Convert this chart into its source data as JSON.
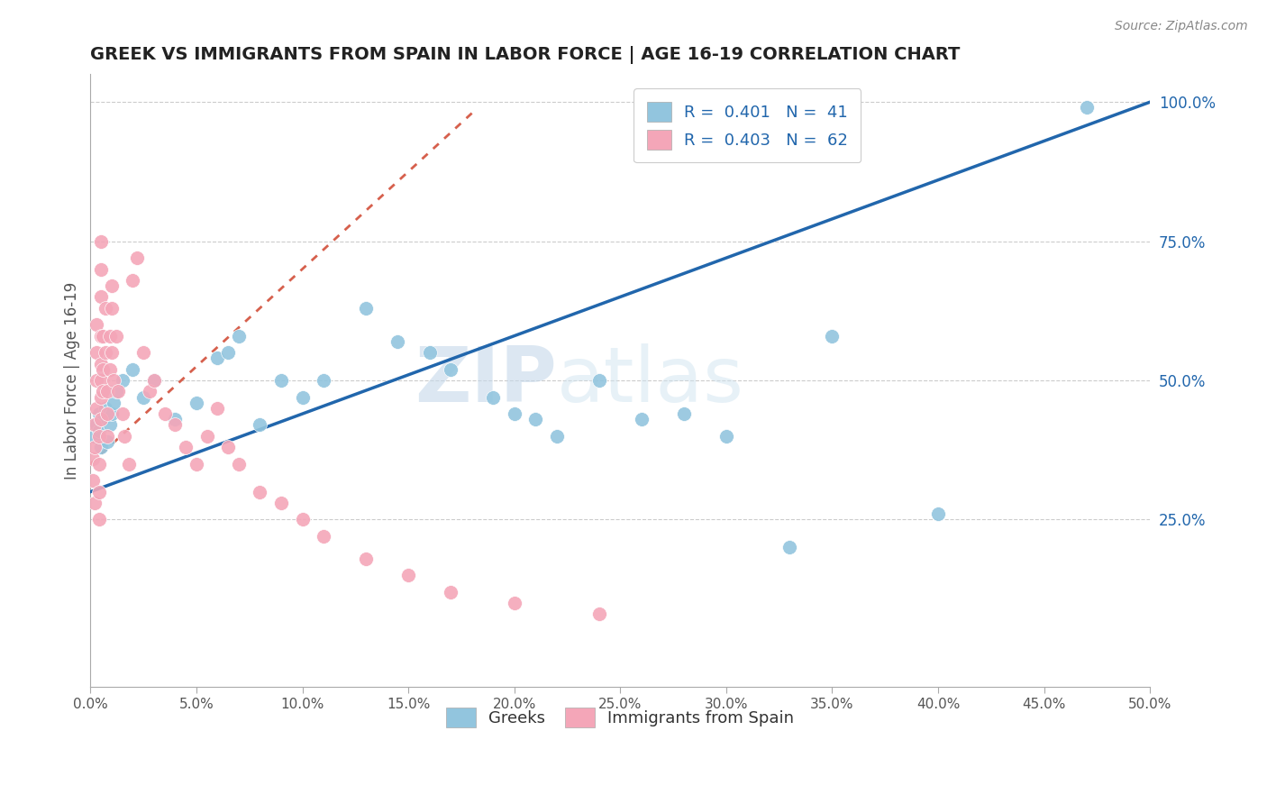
{
  "title": "GREEK VS IMMIGRANTS FROM SPAIN IN LABOR FORCE | AGE 16-19 CORRELATION CHART",
  "source_text": "Source: ZipAtlas.com",
  "ylabel": "In Labor Force | Age 16-19",
  "xlim": [
    0.0,
    0.5
  ],
  "ylim": [
    -0.05,
    1.05
  ],
  "xtick_labels": [
    "0.0%",
    "5.0%",
    "10.0%",
    "15.0%",
    "20.0%",
    "25.0%",
    "30.0%",
    "35.0%",
    "40.0%",
    "45.0%",
    "50.0%"
  ],
  "xtick_values": [
    0.0,
    0.05,
    0.1,
    0.15,
    0.2,
    0.25,
    0.3,
    0.35,
    0.4,
    0.45,
    0.5
  ],
  "ytick_labels_right": [
    "25.0%",
    "50.0%",
    "75.0%",
    "100.0%"
  ],
  "ytick_values_right": [
    0.25,
    0.5,
    0.75,
    1.0
  ],
  "blue_R": 0.401,
  "blue_N": 41,
  "pink_R": 0.403,
  "pink_N": 62,
  "blue_color": "#92c5de",
  "pink_color": "#f4a6b8",
  "blue_line_color": "#2166ac",
  "pink_line_color": "#d6604d",
  "legend_R_color": "#2166ac",
  "blue_scatter_x": [
    0.002,
    0.003,
    0.004,
    0.004,
    0.005,
    0.006,
    0.007,
    0.008,
    0.009,
    0.01,
    0.011,
    0.012,
    0.015,
    0.02,
    0.025,
    0.03,
    0.04,
    0.05,
    0.06,
    0.065,
    0.07,
    0.08,
    0.09,
    0.1,
    0.11,
    0.13,
    0.145,
    0.16,
    0.17,
    0.19,
    0.2,
    0.21,
    0.22,
    0.24,
    0.26,
    0.28,
    0.3,
    0.33,
    0.35,
    0.4,
    0.47
  ],
  "blue_scatter_y": [
    0.4,
    0.42,
    0.44,
    0.41,
    0.38,
    0.43,
    0.45,
    0.39,
    0.42,
    0.44,
    0.46,
    0.48,
    0.5,
    0.52,
    0.47,
    0.5,
    0.43,
    0.46,
    0.54,
    0.55,
    0.58,
    0.42,
    0.5,
    0.47,
    0.5,
    0.63,
    0.57,
    0.55,
    0.52,
    0.47,
    0.44,
    0.43,
    0.4,
    0.5,
    0.43,
    0.44,
    0.4,
    0.2,
    0.58,
    0.26,
    0.99
  ],
  "pink_scatter_x": [
    0.001,
    0.001,
    0.002,
    0.002,
    0.002,
    0.003,
    0.003,
    0.003,
    0.003,
    0.004,
    0.004,
    0.004,
    0.004,
    0.005,
    0.005,
    0.005,
    0.005,
    0.005,
    0.005,
    0.005,
    0.005,
    0.006,
    0.006,
    0.006,
    0.007,
    0.007,
    0.008,
    0.008,
    0.008,
    0.009,
    0.009,
    0.01,
    0.01,
    0.01,
    0.011,
    0.012,
    0.013,
    0.015,
    0.016,
    0.018,
    0.02,
    0.022,
    0.025,
    0.028,
    0.03,
    0.035,
    0.04,
    0.045,
    0.05,
    0.055,
    0.06,
    0.065,
    0.07,
    0.08,
    0.09,
    0.1,
    0.11,
    0.13,
    0.15,
    0.17,
    0.2,
    0.24
  ],
  "pink_scatter_y": [
    0.36,
    0.32,
    0.28,
    0.38,
    0.42,
    0.45,
    0.5,
    0.55,
    0.6,
    0.4,
    0.35,
    0.3,
    0.25,
    0.43,
    0.47,
    0.5,
    0.53,
    0.58,
    0.65,
    0.7,
    0.75,
    0.48,
    0.52,
    0.58,
    0.63,
    0.55,
    0.48,
    0.44,
    0.4,
    0.52,
    0.58,
    0.63,
    0.67,
    0.55,
    0.5,
    0.58,
    0.48,
    0.44,
    0.4,
    0.35,
    0.68,
    0.72,
    0.55,
    0.48,
    0.5,
    0.44,
    0.42,
    0.38,
    0.35,
    0.4,
    0.45,
    0.38,
    0.35,
    0.3,
    0.28,
    0.25,
    0.22,
    0.18,
    0.15,
    0.12,
    0.1,
    0.08
  ]
}
